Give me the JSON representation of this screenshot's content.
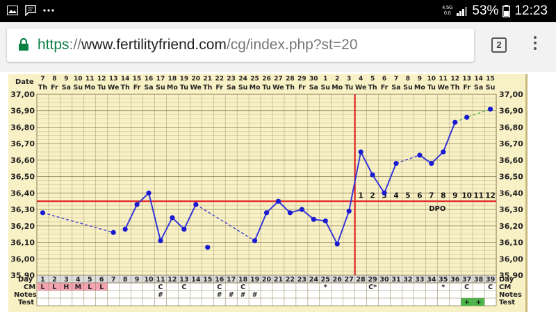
{
  "status_bar": {
    "left_icons": [
      "image-icon",
      "message-icon",
      "more-dots-icon"
    ],
    "network_top": "4.5G",
    "network_bottom": "0.0",
    "battery": "53%",
    "time": "12:23"
  },
  "browser": {
    "url_scheme": "https",
    "url_sep": "://",
    "url_host": "www.fertilityfriend.com",
    "url_path": "/cg/index.php?st=20",
    "tab_count": "2",
    "lock_icon": "lock-icon",
    "menu_icon": "vertical-dots-icon",
    "colors": {
      "lock": "#0b8043",
      "scheme": "#0b8043"
    }
  },
  "chart_data": {
    "type": "line",
    "date_label": "Date",
    "top_dates_partial": [
      "7",
      "8",
      "9",
      "10",
      "11",
      "12",
      "13",
      "14",
      "15",
      "16",
      "17",
      "18",
      "19",
      "20",
      "21",
      "22",
      "23",
      "24",
      "25",
      "26",
      "27",
      "28",
      "29",
      "30",
      "1",
      "2",
      "3",
      "4",
      "5",
      "6",
      "7",
      "8",
      "9",
      "10",
      "11",
      "12",
      "13",
      "14",
      "15"
    ],
    "weekdays": [
      "Th",
      "Fr",
      "Sa",
      "Su",
      "Mo",
      "Tu",
      "We",
      "Th",
      "Fr",
      "Sa",
      "Su",
      "Mo",
      "Tu",
      "We",
      "Th",
      "Fr",
      "Sa",
      "Su",
      "Mo",
      "Tu",
      "We",
      "Th",
      "Fr",
      "Sa",
      "Su",
      "Mo",
      "Tu",
      "We",
      "Th",
      "Fr",
      "Sa",
      "Su",
      "Mo",
      "Tu",
      "We",
      "Th",
      "Fr",
      "Sa",
      "Su"
    ],
    "y_ticks": [
      "37,00",
      "36,90",
      "36,80",
      "36,70",
      "36,60",
      "36,50",
      "36,40",
      "36,30",
      "36,20",
      "36,10",
      "36,00",
      "35,90"
    ],
    "ylim": [
      35.9,
      37.0
    ],
    "days": [
      1,
      2,
      3,
      4,
      5,
      6,
      7,
      8,
      9,
      10,
      11,
      12,
      13,
      14,
      15,
      16,
      17,
      18,
      19,
      20,
      21,
      22,
      23,
      24,
      25,
      26,
      27,
      28,
      29,
      30,
      31,
      32,
      33,
      34,
      35,
      36,
      37,
      38,
      39
    ],
    "temps": [
      36.28,
      null,
      null,
      null,
      null,
      null,
      36.16,
      36.18,
      36.33,
      36.4,
      36.11,
      36.25,
      36.18,
      36.33,
      36.07,
      null,
      null,
      null,
      36.11,
      36.28,
      36.35,
      36.28,
      36.3,
      36.24,
      36.23,
      36.09,
      36.29,
      36.65,
      36.51,
      36.4,
      36.58,
      null,
      36.63,
      36.58,
      36.65,
      36.83,
      36.86,
      null,
      36.91
    ],
    "solid_segments": [
      [
        8,
        9,
        10,
        11,
        12,
        13,
        14
      ],
      [
        19,
        20,
        21,
        22,
        23,
        24,
        25,
        26,
        27,
        28,
        29,
        30,
        31
      ],
      [
        33,
        34,
        35,
        36
      ]
    ],
    "dashed_segments": [
      [
        1,
        7
      ],
      [
        14,
        19
      ],
      [
        31,
        33
      ]
    ],
    "green_dashed_segments": [
      [
        36,
        37,
        39
      ]
    ],
    "coverline": 36.35,
    "ovulation_day": 27,
    "dpo_numbers": [
      "1",
      "2",
      "3",
      "4",
      "5",
      "6",
      "7",
      "8",
      "9",
      "10",
      "11",
      "12"
    ],
    "dpo_label": "DPO",
    "day_label": "Day",
    "cm_label": "CM",
    "notes_label": "Notes",
    "test_label": "Test",
    "cm_values": [
      "L",
      "L",
      "H",
      "M",
      "L",
      "L",
      "",
      "",
      "",
      "",
      "C",
      "",
      "C",
      "",
      "",
      "C",
      "",
      "C",
      "",
      "",
      "",
      "",
      "",
      "",
      "*",
      "",
      "",
      "",
      "C*",
      "",
      "",
      "",
      "",
      "",
      "*",
      "",
      "C",
      "",
      "C"
    ],
    "cm_pink_days": [
      1,
      2,
      3,
      4,
      5,
      6
    ],
    "notes_values": [
      "",
      "",
      "",
      "",
      "",
      "",
      "",
      "",
      "",
      "",
      "#",
      "",
      "",
      "",
      "",
      "#",
      "#",
      "#",
      "#",
      "",
      "",
      "",
      "",
      "",
      "",
      "",
      "",
      "",
      "",
      "",
      "",
      "",
      "",
      "",
      "",
      "",
      "",
      "",
      ""
    ],
    "test_marks": [
      "+",
      "+"
    ],
    "test_green_days": [
      37,
      38
    ],
    "colors": {
      "line": "#3535d8",
      "marker": "#1a1ad0",
      "coverline": "#e02222",
      "grid_bg": "#f9f1c6",
      "grid": "#8a7c55",
      "green": "#4cb84c",
      "pink": "#f4a3b3"
    }
  }
}
